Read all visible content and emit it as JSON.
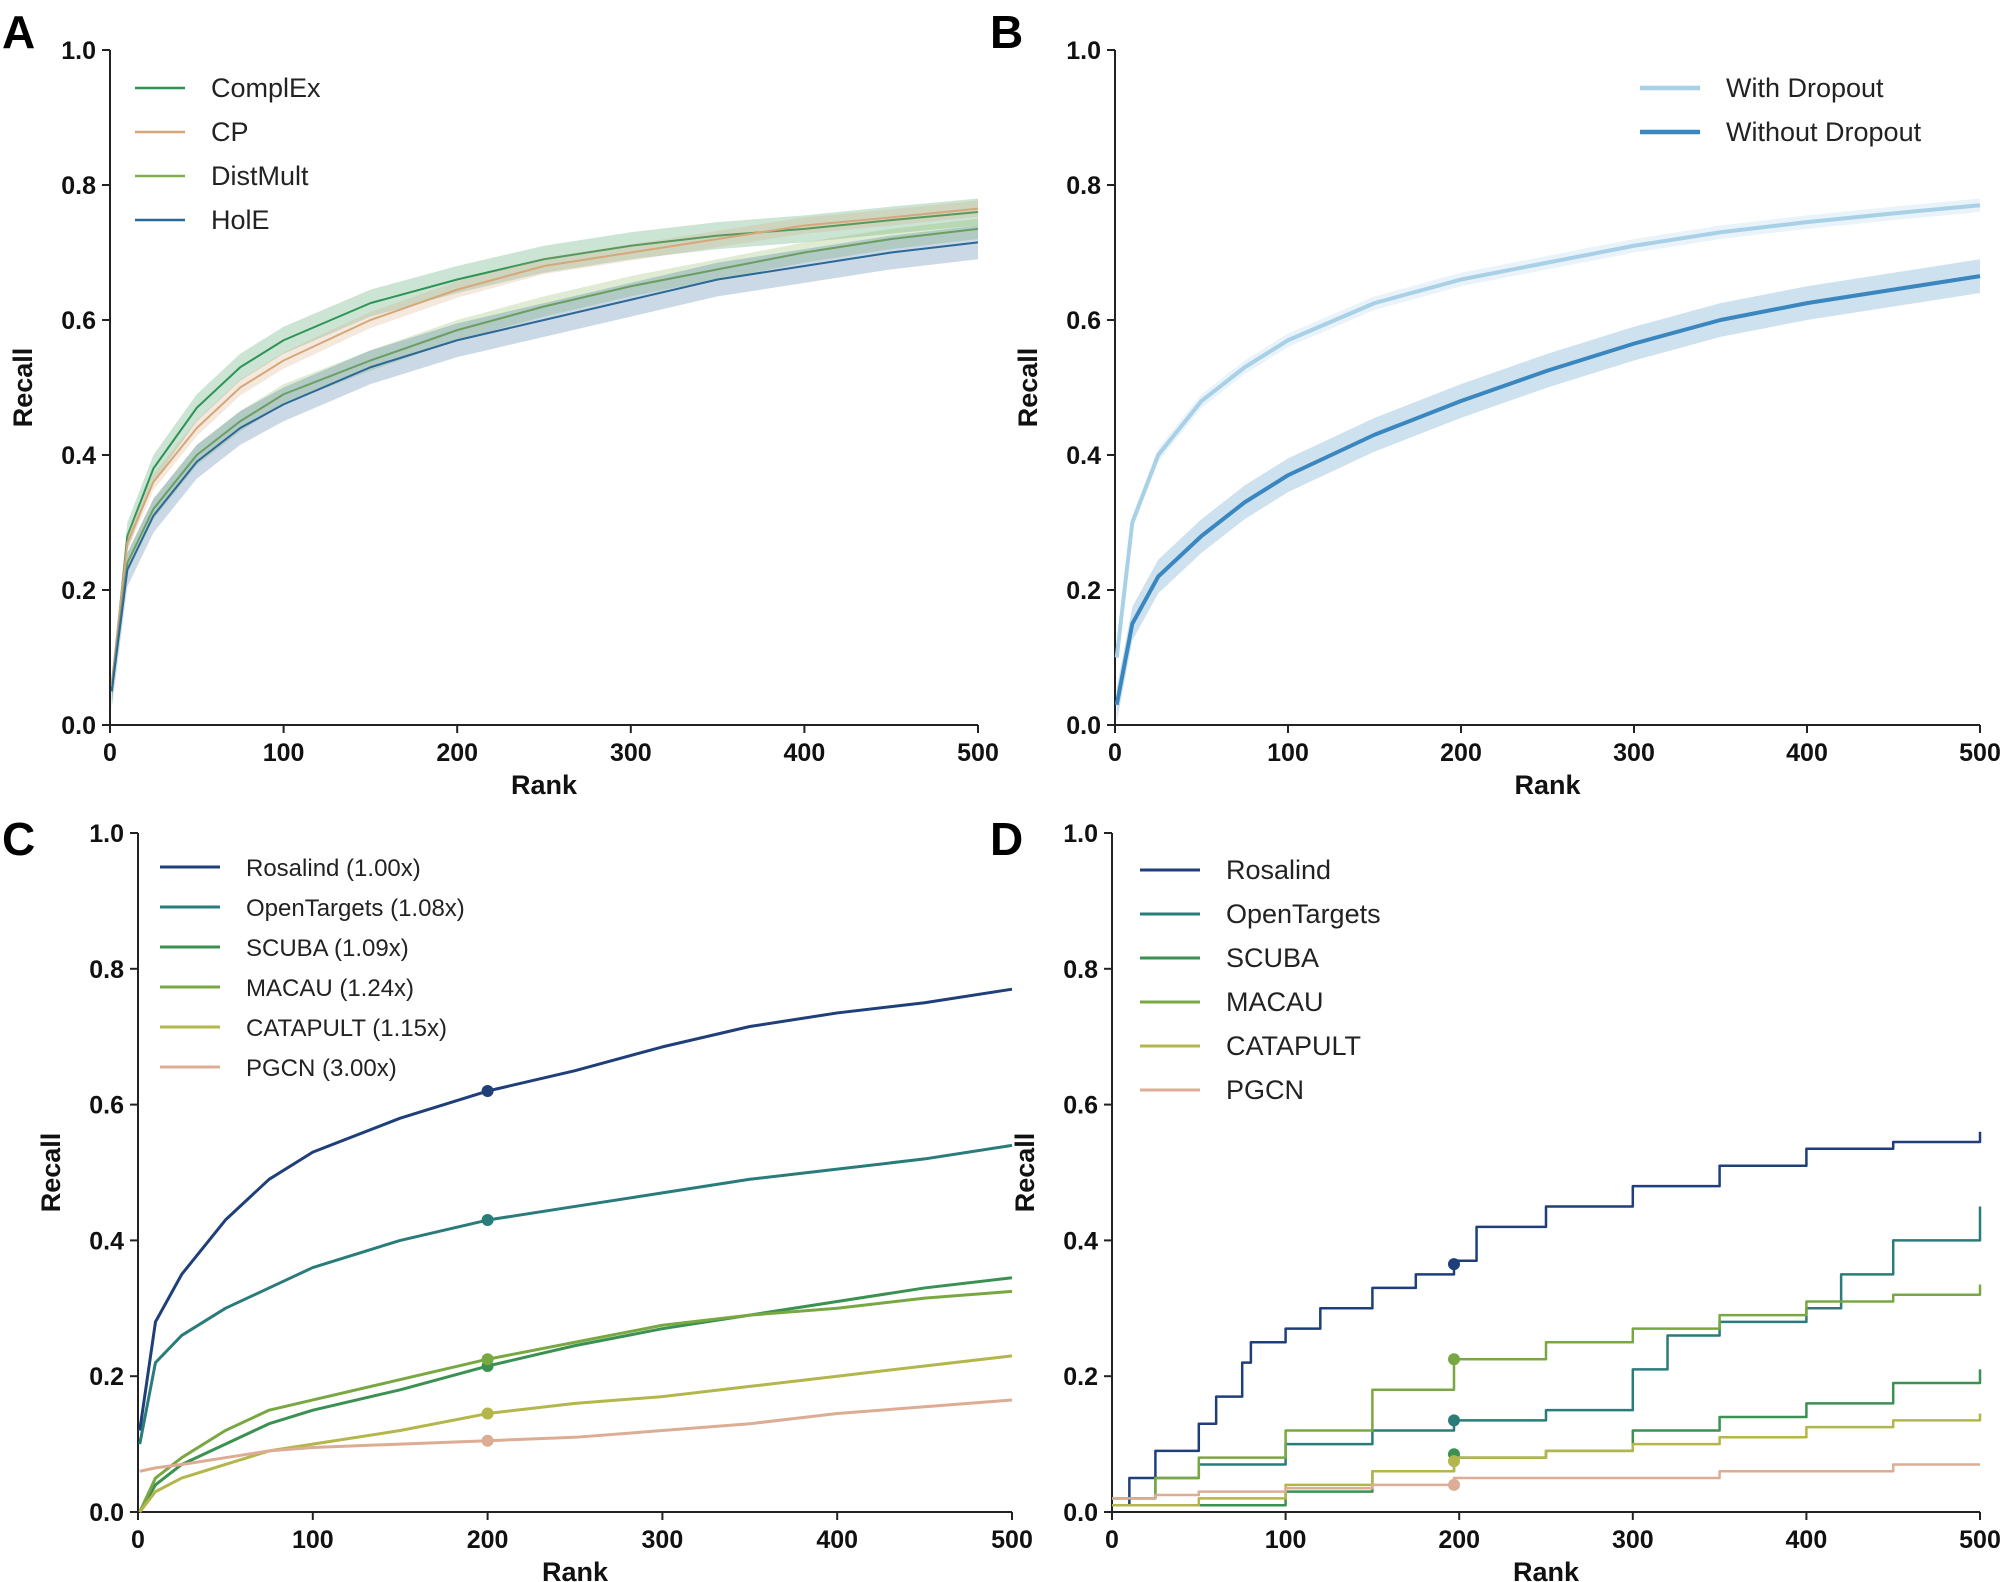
{
  "chart_data": [
    {
      "panel": "A",
      "type": "line",
      "xlabel": "Rank",
      "ylabel": "Recall",
      "xlim": [
        0,
        500
      ],
      "ylim": [
        0,
        1.0
      ],
      "xticks": [
        "0",
        "100",
        "200",
        "300",
        "400",
        "500"
      ],
      "yticks": [
        "0.0",
        "0.2",
        "0.4",
        "0.6",
        "0.8",
        "1.0"
      ],
      "legend_position": "top-left",
      "shaded_bands": true,
      "x": [
        1,
        10,
        25,
        50,
        75,
        100,
        150,
        200,
        250,
        300,
        350,
        400,
        450,
        500
      ],
      "series": [
        {
          "name": "ComplEx",
          "color": "#2e9455",
          "values": [
            0.05,
            0.28,
            0.38,
            0.47,
            0.53,
            0.57,
            0.625,
            0.66,
            0.69,
            0.71,
            0.725,
            0.735,
            0.748,
            0.76
          ],
          "band": 0.02
        },
        {
          "name": "CP",
          "color": "#d6a77a",
          "values": [
            0.06,
            0.27,
            0.36,
            0.44,
            0.5,
            0.54,
            0.6,
            0.645,
            0.68,
            0.7,
            0.72,
            0.74,
            0.752,
            0.765
          ],
          "band": 0.012
        },
        {
          "name": "DistMult",
          "color": "#7fb050",
          "values": [
            0.05,
            0.24,
            0.32,
            0.4,
            0.45,
            0.49,
            0.54,
            0.585,
            0.62,
            0.65,
            0.675,
            0.7,
            0.72,
            0.735
          ],
          "band": 0.015
        },
        {
          "name": "HolE",
          "color": "#2b6896",
          "values": [
            0.05,
            0.23,
            0.31,
            0.39,
            0.44,
            0.475,
            0.53,
            0.57,
            0.6,
            0.63,
            0.66,
            0.68,
            0.7,
            0.715
          ],
          "band": 0.025
        }
      ]
    },
    {
      "panel": "B",
      "type": "line",
      "xlabel": "Rank",
      "ylabel": "Recall",
      "xlim": [
        0,
        500
      ],
      "ylim": [
        0,
        1.0
      ],
      "xticks": [
        "0",
        "100",
        "200",
        "300",
        "400",
        "500"
      ],
      "yticks": [
        "0.0",
        "0.2",
        "0.4",
        "0.6",
        "0.8",
        "1.0"
      ],
      "legend_position": "top-right",
      "shaded_bands": true,
      "x": [
        1,
        10,
        25,
        50,
        75,
        100,
        150,
        200,
        250,
        300,
        350,
        400,
        450,
        500
      ],
      "series": [
        {
          "name": "With Dropout",
          "color": "#a8d1e7",
          "values": [
            0.1,
            0.3,
            0.4,
            0.48,
            0.53,
            0.57,
            0.625,
            0.66,
            0.685,
            0.71,
            0.73,
            0.745,
            0.758,
            0.77
          ],
          "band": 0.01
        },
        {
          "name": "Without Dropout",
          "color": "#3a87c0",
          "values": [
            0.03,
            0.15,
            0.22,
            0.28,
            0.33,
            0.37,
            0.43,
            0.48,
            0.525,
            0.565,
            0.6,
            0.625,
            0.645,
            0.665
          ],
          "band": 0.025
        }
      ]
    },
    {
      "panel": "C",
      "type": "line",
      "xlabel": "Rank",
      "ylabel": "Recall",
      "xlim": [
        0,
        500
      ],
      "ylim": [
        0,
        1.0
      ],
      "xticks": [
        "0",
        "100",
        "200",
        "300",
        "400",
        "500"
      ],
      "yticks": [
        "0.0",
        "0.2",
        "0.4",
        "0.6",
        "0.8",
        "1.0"
      ],
      "legend_position": "top-left",
      "marker_at_x": 200,
      "x": [
        1,
        10,
        25,
        50,
        75,
        100,
        150,
        200,
        250,
        300,
        350,
        400,
        450,
        500
      ],
      "series": [
        {
          "name": "Rosalind (1.00x)",
          "color": "#1f3f7a",
          "values": [
            0.12,
            0.28,
            0.35,
            0.43,
            0.49,
            0.53,
            0.58,
            0.62,
            0.65,
            0.685,
            0.715,
            0.735,
            0.75,
            0.77
          ],
          "marker": 0.62
        },
        {
          "name": "OpenTargets (1.08x)",
          "color": "#2a7c7b",
          "values": [
            0.1,
            0.22,
            0.26,
            0.3,
            0.33,
            0.36,
            0.4,
            0.43,
            0.45,
            0.47,
            0.49,
            0.505,
            0.52,
            0.54
          ],
          "marker": 0.43
        },
        {
          "name": "SCUBA (1.09x)",
          "color": "#3b9151",
          "values": [
            0.0,
            0.04,
            0.07,
            0.1,
            0.13,
            0.15,
            0.18,
            0.215,
            0.245,
            0.27,
            0.29,
            0.31,
            0.33,
            0.345
          ],
          "marker": 0.215
        },
        {
          "name": "MACAU (1.24x)",
          "color": "#79a843",
          "values": [
            0.0,
            0.05,
            0.08,
            0.12,
            0.15,
            0.165,
            0.195,
            0.225,
            0.25,
            0.275,
            0.29,
            0.3,
            0.315,
            0.325
          ],
          "marker": 0.225
        },
        {
          "name": "CATAPULT (1.15x)",
          "color": "#b3b64b",
          "values": [
            0.0,
            0.03,
            0.05,
            0.07,
            0.09,
            0.1,
            0.12,
            0.145,
            0.16,
            0.17,
            0.185,
            0.2,
            0.215,
            0.23
          ],
          "marker": 0.145
        },
        {
          "name": "PGCN (3.00x)",
          "color": "#dcac94",
          "values": [
            0.06,
            0.065,
            0.07,
            0.08,
            0.09,
            0.095,
            0.1,
            0.105,
            0.11,
            0.12,
            0.13,
            0.145,
            0.155,
            0.165
          ],
          "marker": 0.105
        }
      ]
    },
    {
      "panel": "D",
      "type": "line",
      "xlabel": "Rank",
      "ylabel": "Recall",
      "xlim": [
        0,
        500
      ],
      "ylim": [
        0,
        1.0
      ],
      "xticks": [
        "0",
        "100",
        "200",
        "300",
        "400",
        "500"
      ],
      "yticks": [
        "0.0",
        "0.2",
        "0.4",
        "0.6",
        "0.8",
        "1.0"
      ],
      "legend_position": "top-left",
      "step": true,
      "marker_at_x": 197,
      "series": [
        {
          "name": "Rosalind",
          "color": "#1f3f7a",
          "x": [
            0,
            10,
            25,
            50,
            60,
            75,
            80,
            100,
            120,
            150,
            175,
            197,
            210,
            250,
            300,
            350,
            400,
            450,
            500
          ],
          "values": [
            0.01,
            0.05,
            0.09,
            0.13,
            0.17,
            0.22,
            0.25,
            0.27,
            0.3,
            0.33,
            0.35,
            0.37,
            0.42,
            0.45,
            0.48,
            0.51,
            0.535,
            0.545,
            0.56
          ],
          "marker": 0.365
        },
        {
          "name": "OpenTargets",
          "color": "#2a7c7b",
          "x": [
            0,
            25,
            50,
            100,
            150,
            197,
            250,
            300,
            320,
            350,
            400,
            420,
            450,
            500
          ],
          "values": [
            0.02,
            0.05,
            0.07,
            0.1,
            0.12,
            0.135,
            0.15,
            0.21,
            0.26,
            0.28,
            0.3,
            0.35,
            0.4,
            0.45
          ],
          "marker": 0.135
        },
        {
          "name": "SCUBA",
          "color": "#3b9151",
          "x": [
            0,
            50,
            100,
            150,
            197,
            250,
            300,
            350,
            400,
            450,
            500
          ],
          "values": [
            0.01,
            0.01,
            0.03,
            0.06,
            0.08,
            0.09,
            0.12,
            0.14,
            0.16,
            0.19,
            0.21
          ],
          "marker": 0.085
        },
        {
          "name": "MACAU",
          "color": "#79a843",
          "x": [
            0,
            25,
            50,
            100,
            150,
            197,
            250,
            300,
            350,
            400,
            450,
            500
          ],
          "values": [
            0.02,
            0.05,
            0.08,
            0.12,
            0.18,
            0.225,
            0.25,
            0.27,
            0.29,
            0.31,
            0.32,
            0.335
          ],
          "marker": 0.225
        },
        {
          "name": "CATAPULT",
          "color": "#b3b64b",
          "x": [
            0,
            50,
            100,
            150,
            197,
            250,
            300,
            350,
            400,
            450,
            500
          ],
          "values": [
            0.01,
            0.02,
            0.04,
            0.06,
            0.08,
            0.09,
            0.1,
            0.11,
            0.125,
            0.135,
            0.145
          ],
          "marker": 0.075
        },
        {
          "name": "PGCN",
          "color": "#dcac94",
          "x": [
            0,
            25,
            50,
            100,
            150,
            197,
            250,
            300,
            350,
            400,
            450,
            500
          ],
          "values": [
            0.02,
            0.025,
            0.03,
            0.035,
            0.04,
            0.05,
            0.05,
            0.05,
            0.06,
            0.06,
            0.07,
            0.07
          ],
          "marker": 0.04
        }
      ]
    }
  ]
}
